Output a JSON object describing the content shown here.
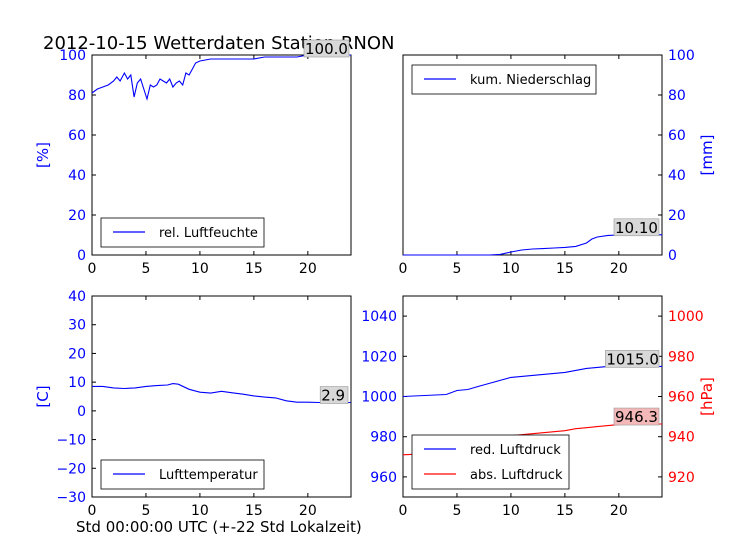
{
  "title": "2012-10-15 Wetterdaten Station RNON",
  "xlabel": "Std 00:00:00 UTC (+-22 Std Lokalzeit)",
  "colors": {
    "primary": "#0000ff",
    "secondary": "#ff0000",
    "annot_bg": "#d8d8d8",
    "annot_bg_red": "#f4b8b8"
  },
  "chart_data": [
    {
      "type": "line",
      "panel": "top-left",
      "ylabel": "[%]",
      "xlim": [
        0,
        24
      ],
      "ylim": [
        0,
        100
      ],
      "xticks": [
        0,
        5,
        10,
        15,
        20
      ],
      "yticks": [
        0,
        20,
        40,
        60,
        80,
        100
      ],
      "yaxis_side": "left",
      "legend": {
        "label": "rel. Luftfeuchte",
        "position": "lower-left"
      },
      "annotation": {
        "text": "100.0"
      },
      "series": [
        {
          "name": "rel. Luftfeuchte",
          "color": "#0000ff",
          "x": [
            0,
            0.5,
            1,
            1.5,
            2,
            2.3,
            2.6,
            3,
            3.3,
            3.6,
            3.9,
            4.2,
            4.5,
            4.8,
            5.1,
            5.4,
            5.7,
            6,
            6.3,
            6.6,
            6.9,
            7.2,
            7.5,
            7.8,
            8.1,
            8.4,
            8.7,
            9,
            9.3,
            9.6,
            10,
            11,
            12,
            13,
            14,
            15,
            16,
            17,
            18,
            19,
            20,
            21,
            22,
            23,
            24
          ],
          "y": [
            81,
            83,
            84,
            85,
            87,
            89,
            87,
            91,
            88,
            90,
            79,
            86,
            88,
            83,
            78,
            85,
            84,
            85,
            88,
            87,
            86,
            88,
            84,
            86,
            87,
            85,
            91,
            90,
            93,
            96,
            97,
            98,
            98,
            98,
            98,
            98,
            99,
            99,
            99,
            99,
            100,
            100,
            100,
            100,
            100
          ]
        }
      ]
    },
    {
      "type": "line",
      "panel": "top-right",
      "ylabel": "[mm]",
      "xlim": [
        0,
        24
      ],
      "ylim": [
        0,
        100
      ],
      "xticks": [
        0,
        5,
        10,
        15,
        20
      ],
      "yticks": [
        0,
        20,
        40,
        60,
        80,
        100
      ],
      "yaxis_side": "right",
      "legend": {
        "label": "kum. Niederschlag",
        "position": "upper-left"
      },
      "annotation": {
        "text": "10.10"
      },
      "series": [
        {
          "name": "kum. Niederschlag",
          "color": "#0000ff",
          "x": [
            0,
            8,
            9,
            10,
            11,
            12,
            13,
            14,
            15,
            16,
            17,
            17.5,
            18,
            19,
            20,
            21,
            22,
            23,
            24
          ],
          "y": [
            0,
            0,
            0.3,
            1.5,
            2.5,
            3,
            3.2,
            3.5,
            3.8,
            4.3,
            6,
            8,
            9,
            9.8,
            10,
            10.1,
            10.1,
            10.1,
            10.1
          ]
        }
      ]
    },
    {
      "type": "line",
      "panel": "bottom-left",
      "ylabel": "[C]",
      "xlim": [
        0,
        24
      ],
      "ylim": [
        -30,
        40
      ],
      "xticks": [
        0,
        5,
        10,
        15,
        20
      ],
      "yticks": [
        -30,
        -20,
        -10,
        0,
        10,
        20,
        30,
        40
      ],
      "yaxis_side": "left",
      "legend": {
        "label": "Lufttemperatur",
        "position": "lower-left"
      },
      "annotation": {
        "text": "2.9"
      },
      "series": [
        {
          "name": "Lufttemperatur",
          "color": "#0000ff",
          "x": [
            0,
            1,
            2,
            3,
            4,
            5,
            6,
            7,
            7.5,
            8,
            9,
            10,
            11,
            12,
            13,
            14,
            15,
            16,
            17,
            18,
            19,
            20,
            21,
            22,
            23,
            24
          ],
          "y": [
            8.5,
            8.5,
            8,
            7.8,
            8,
            8.5,
            8.8,
            9,
            9.5,
            9.3,
            7.5,
            6.5,
            6.2,
            6.8,
            6.3,
            5.8,
            5.2,
            4.8,
            4.5,
            3.5,
            3,
            3,
            2.9,
            2.9,
            2.9,
            2.9
          ]
        }
      ]
    },
    {
      "type": "line",
      "panel": "bottom-right",
      "ylabel": "[hPa]",
      "xlim": [
        0,
        24
      ],
      "ylim": [
        950,
        1050
      ],
      "ylim_right": [
        910,
        1010
      ],
      "xticks": [
        0,
        5,
        10,
        15,
        20
      ],
      "yticks": [
        960,
        980,
        1000,
        1020,
        1040
      ],
      "yticks_right": [
        920,
        940,
        960,
        980,
        1000
      ],
      "yaxis_side": "both",
      "legend": {
        "labels": [
          "red. Luftdruck",
          "abs. Luftdruck"
        ],
        "position": "lower-left"
      },
      "annotations": [
        {
          "text": "1015.0"
        },
        {
          "text": "946.3"
        }
      ],
      "series": [
        {
          "name": "red. Luftdruck",
          "color": "#0000ff",
          "axis": "left",
          "x": [
            0,
            2,
            4,
            5,
            6,
            7,
            8,
            9,
            10,
            11,
            12,
            13,
            14,
            15,
            16,
            17,
            18,
            19,
            20,
            21,
            22,
            23,
            24
          ],
          "y": [
            1000,
            1000.5,
            1001,
            1003,
            1003.5,
            1005,
            1006.5,
            1008,
            1009.5,
            1010,
            1010.5,
            1011,
            1011.5,
            1012,
            1013,
            1014,
            1014.5,
            1015,
            1015,
            1015,
            1015,
            1015,
            1015
          ]
        },
        {
          "name": "abs. Luftdruck",
          "color": "#ff0000",
          "axis": "right",
          "x": [
            0,
            2,
            4,
            5,
            6,
            7,
            8,
            9,
            10,
            11,
            12,
            13,
            14,
            15,
            16,
            17,
            18,
            19,
            20,
            21,
            22,
            23,
            24
          ],
          "y": [
            931,
            931.5,
            932,
            934,
            935,
            936,
            937.5,
            939,
            940.5,
            941,
            941.5,
            942,
            942.5,
            943,
            944,
            944.5,
            945,
            945.5,
            946,
            946.3,
            946.3,
            946.3,
            946.3
          ]
        }
      ]
    }
  ]
}
